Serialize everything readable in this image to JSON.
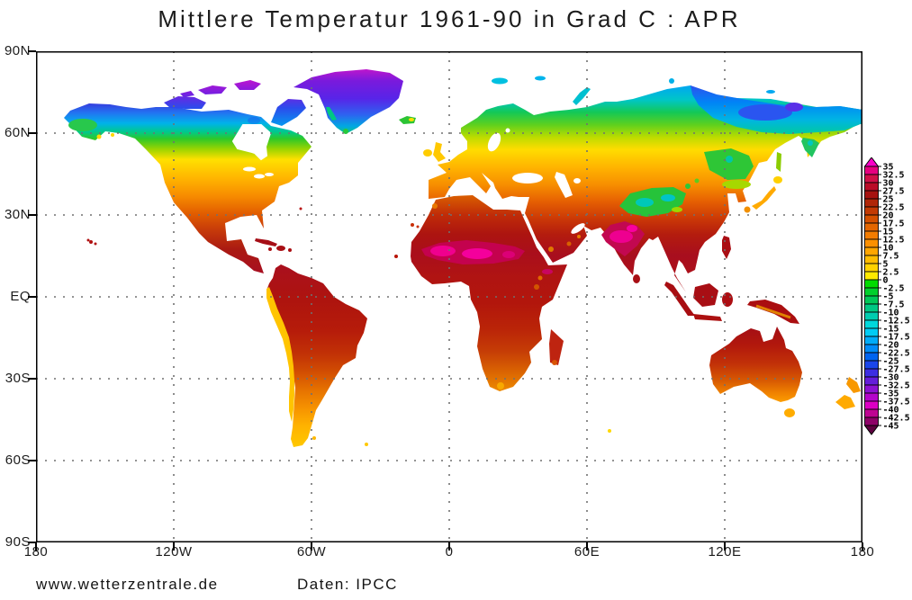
{
  "title": "Mittlere Temperatur 1961-90 in Grad C : APR",
  "footer": {
    "site": "www.wetterzentrale.de",
    "source": "Daten: IPCC"
  },
  "axes": {
    "lat_labels": [
      "90N",
      "60N",
      "30N",
      "EQ",
      "30S",
      "60S",
      "90S"
    ],
    "lon_labels": [
      "180",
      "120W",
      "60W",
      "0",
      "60E",
      "120E",
      "180"
    ]
  },
  "colorbar": {
    "unit": "Grad C",
    "max": 35,
    "min": -45,
    "step": 2.5,
    "labels": [
      "35",
      "32.5",
      "30",
      "27.5",
      "25",
      "22.5",
      "20",
      "17.5",
      "15",
      "12.5",
      "10",
      "7.5",
      "5",
      "2.5",
      "0",
      "-2.5",
      "-5",
      "-7.5",
      "-10",
      "-12.5",
      "-15",
      "-17.5",
      "-20",
      "-22.5",
      "-25",
      "-27.5",
      "-30",
      "-32.5",
      "-35",
      "-37.5",
      "-40",
      "-42.5",
      "-45"
    ],
    "segments": [
      "#FA00C8",
      "#E60080",
      "#D01048",
      "#BA0C28",
      "#A61210",
      "#B02608",
      "#C23A04",
      "#D45000",
      "#E46600",
      "#F27C00",
      "#FC9000",
      "#FFA600",
      "#FFBC00",
      "#FFD200",
      "#FFEA00",
      "#00DC00",
      "#00D02C",
      "#00C858",
      "#00C884",
      "#00CCB0",
      "#00D8DC",
      "#00CCF4",
      "#00ACF8",
      "#008CF8",
      "#0064F0",
      "#1A46EA",
      "#3C2EE2",
      "#641EDA",
      "#8C12D2",
      "#B406CA",
      "#DC00C4",
      "#BE0492",
      "#8E0268",
      "#5E0240"
    ],
    "grid_color": "#707070"
  }
}
